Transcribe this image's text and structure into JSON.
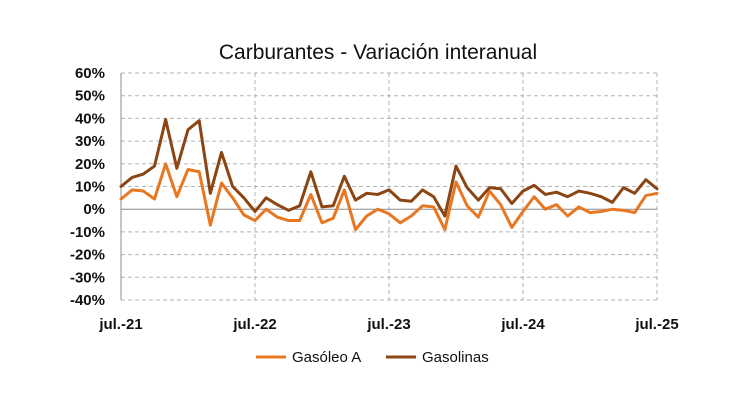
{
  "chart_data": {
    "type": "line",
    "title": "Carburantes - Variación interanual",
    "xlabel": "",
    "ylabel": "",
    "ylim": [
      -40,
      60
    ],
    "yticks": [
      -40,
      -30,
      -20,
      -10,
      0,
      10,
      20,
      30,
      40,
      50,
      60
    ],
    "ytick_labels": [
      "-40%",
      "-30%",
      "-20%",
      "-10%",
      "0%",
      "10%",
      "20%",
      "30%",
      "40%",
      "50%",
      "60%"
    ],
    "xlim": [
      0,
      48
    ],
    "xticks": [
      0,
      12,
      24,
      36,
      48
    ],
    "xtick_labels": [
      "jul.-21",
      "jul.-22",
      "jul.-23",
      "jul.-24",
      "jul.-25"
    ],
    "grid": true,
    "legend_position": "bottom",
    "series": [
      {
        "name": "Gasóleo A",
        "color": "#E87722",
        "values": [
          4.5,
          8.5,
          8,
          4.5,
          20,
          5.5,
          17.5,
          16.5,
          -7,
          11.5,
          5,
          -2.5,
          -5,
          0,
          -3.5,
          -5,
          -5,
          6.5,
          -6,
          -4,
          8.5,
          -9,
          -3,
          0,
          -2,
          -6,
          -3,
          1.5,
          1,
          -9,
          12,
          1.5,
          -3.5,
          8,
          2,
          -8,
          -1,
          5.5,
          0,
          2,
          -3,
          1,
          -1.5,
          -1,
          0,
          -0.5,
          -1.5,
          6,
          7
        ]
      },
      {
        "name": "Gasolinas",
        "color": "#8B4513",
        "values": [
          10,
          14,
          15.5,
          19,
          39.5,
          18,
          35,
          39,
          7,
          25,
          10,
          5,
          -1,
          5,
          2,
          -0.5,
          1.5,
          16.5,
          1,
          1.5,
          14.5,
          4,
          7,
          6.5,
          8.5,
          4,
          3.5,
          8.5,
          5.5,
          -3,
          19,
          9.5,
          4,
          9.5,
          9,
          2.5,
          8,
          10.5,
          6.5,
          7.5,
          5.5,
          8,
          7,
          5.5,
          3,
          9.5,
          7,
          13,
          9
        ]
      }
    ]
  }
}
